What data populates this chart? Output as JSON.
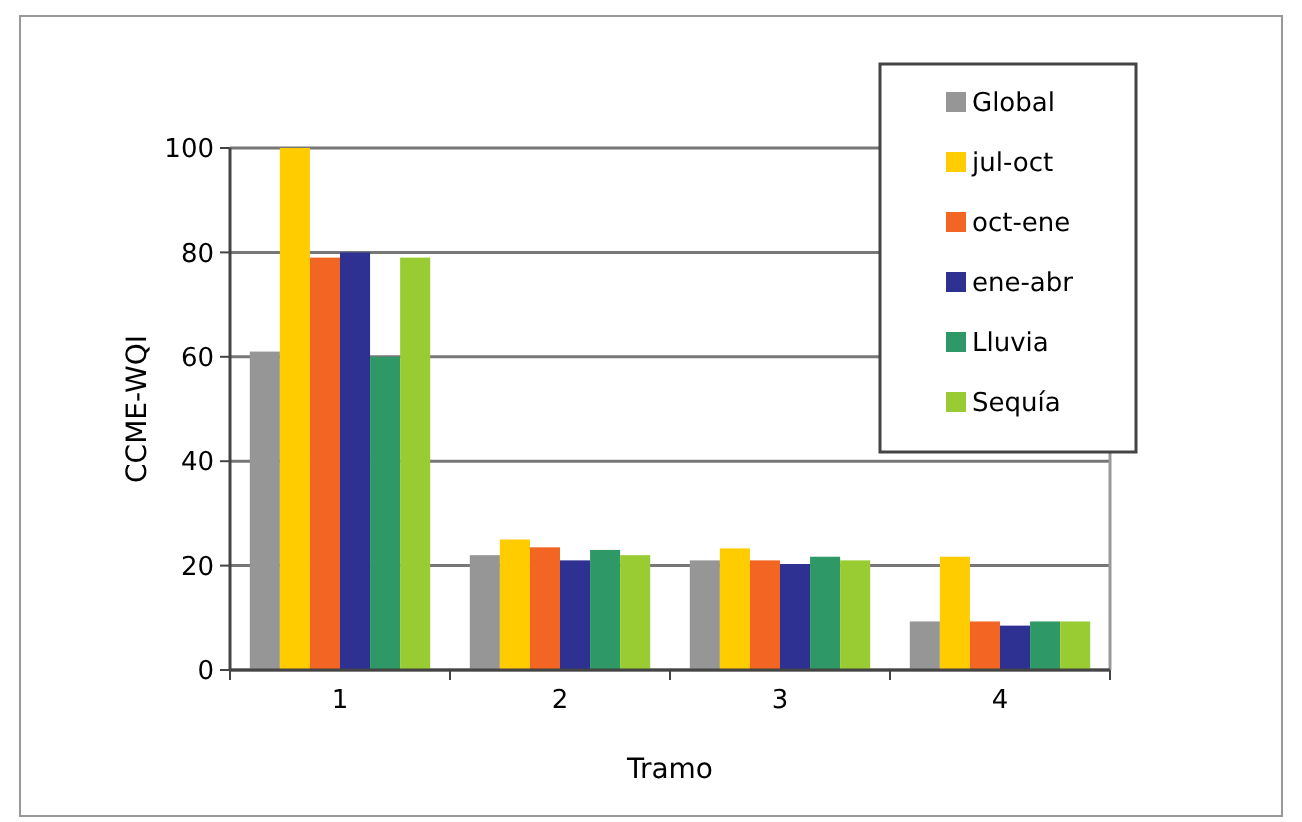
{
  "chart_data": {
    "type": "bar",
    "xlabel": "Tramo",
    "ylabel": "CCME-WQI",
    "categories": [
      "1",
      "2",
      "3",
      "4"
    ],
    "series": [
      {
        "name": "Global",
        "color": "#969696",
        "values": [
          61,
          22,
          21,
          9.3
        ]
      },
      {
        "name": "jul-oct",
        "color": "#ffcc00",
        "values": [
          100,
          25,
          23.3,
          21.7
        ]
      },
      {
        "name": "oct-ene",
        "color": "#f26522",
        "values": [
          79,
          23.5,
          21,
          9.3
        ]
      },
      {
        "name": "ene-abr",
        "color": "#2e3192",
        "values": [
          80,
          21,
          20.3,
          8.5
        ]
      },
      {
        "name": "Lluvia",
        "color": "#2e9966",
        "values": [
          60,
          23,
          21.7,
          9.3
        ]
      },
      {
        "name": "Sequía",
        "color": "#99cc33",
        "values": [
          79,
          22,
          21,
          9.3
        ]
      }
    ],
    "ylim": [
      0,
      100
    ],
    "yticks": [
      0,
      20,
      40,
      60,
      80,
      100
    ],
    "grid": "y",
    "legend": "top right"
  }
}
